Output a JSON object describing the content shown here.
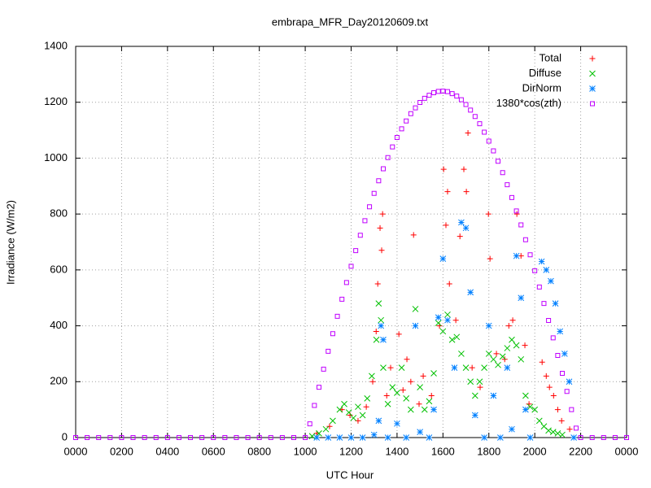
{
  "chart_data": {
    "type": "scatter",
    "title": "embrapa_MFR_Day20120609.txt",
    "xlabel": "UTC Hour",
    "ylabel": "Irradiance (W/m2)",
    "xlim": [
      0,
      24
    ],
    "ylim": [
      0,
      1400
    ],
    "xticks": [
      {
        "value": 0,
        "label": "0000"
      },
      {
        "value": 2,
        "label": "0200"
      },
      {
        "value": 4,
        "label": "0400"
      },
      {
        "value": 6,
        "label": "0600"
      },
      {
        "value": 8,
        "label": "0800"
      },
      {
        "value": 10,
        "label": "1000"
      },
      {
        "value": 12,
        "label": "1200"
      },
      {
        "value": 14,
        "label": "1400"
      },
      {
        "value": 16,
        "label": "1600"
      },
      {
        "value": 18,
        "label": "1800"
      },
      {
        "value": 20,
        "label": "2000"
      },
      {
        "value": 22,
        "label": "2200"
      },
      {
        "value": 24,
        "label": "0000"
      }
    ],
    "yticks": [
      0,
      200,
      400,
      600,
      800,
      1000,
      1200,
      1400
    ],
    "grid": true,
    "legend": "top-right",
    "series": [
      {
        "name": "Total",
        "color": "#ff0000",
        "marker": "plus",
        "x": [
          10.5,
          11.06,
          11.6,
          11.95,
          12.3,
          12.66,
          12.94,
          13.09,
          13.16,
          13.26,
          13.37,
          13.33,
          13.55,
          13.72,
          14.08,
          14.26,
          14.43,
          14.72,
          14.6,
          14.96,
          15.14,
          15.5,
          15.85,
          16.03,
          16.2,
          16.13,
          16.28,
          16.56,
          16.74,
          16.91,
          17.09,
          17.02,
          17.27,
          17.62,
          17.98,
          18.05,
          18.33,
          18.69,
          18.87,
          19.04,
          19.22,
          19.4,
          19.57,
          19.75,
          20.32,
          20.5,
          20.64,
          20.82,
          21.0,
          21.17,
          21.52
        ],
        "values": [
          15,
          40,
          100,
          80,
          60,
          110,
          200,
          380,
          550,
          750,
          800,
          670,
          150,
          250,
          370,
          170,
          280,
          725,
          200,
          120,
          220,
          150,
          400,
          960,
          880,
          760,
          550,
          420,
          720,
          960,
          1090,
          880,
          250,
          180,
          800,
          640,
          300,
          280,
          400,
          420,
          800,
          650,
          330,
          120,
          270,
          220,
          180,
          150,
          100,
          60,
          30
        ]
      },
      {
        "name": "Diffuse",
        "color": "#00c000",
        "marker": "cross",
        "x": [
          10.3,
          10.6,
          10.9,
          11.2,
          11.5,
          11.7,
          11.9,
          12.1,
          12.3,
          12.5,
          12.7,
          12.9,
          13.1,
          13.2,
          13.3,
          13.4,
          13.6,
          13.8,
          14.0,
          14.2,
          14.4,
          14.6,
          14.8,
          15.0,
          15.2,
          15.4,
          15.6,
          15.8,
          16.0,
          16.2,
          16.4,
          16.6,
          16.8,
          17.0,
          17.2,
          17.4,
          17.6,
          17.8,
          18.0,
          18.2,
          18.4,
          18.6,
          18.8,
          19.0,
          19.2,
          19.4,
          19.6,
          19.8,
          20.0,
          20.2,
          20.4,
          20.6,
          20.8,
          21.0,
          21.2
        ],
        "values": [
          5,
          15,
          30,
          60,
          100,
          120,
          90,
          70,
          110,
          80,
          140,
          220,
          350,
          480,
          420,
          250,
          120,
          180,
          160,
          250,
          140,
          100,
          460,
          180,
          100,
          130,
          230,
          410,
          380,
          440,
          350,
          360,
          300,
          250,
          200,
          150,
          200,
          250,
          300,
          280,
          260,
          290,
          320,
          350,
          330,
          280,
          150,
          110,
          100,
          60,
          40,
          25,
          20,
          15,
          10
        ]
      },
      {
        "name": "DirNorm",
        "color": "#0080ff",
        "marker": "star",
        "x": [
          10.5,
          11.0,
          11.5,
          12.0,
          12.5,
          13.0,
          13.2,
          13.3,
          13.4,
          13.6,
          14.0,
          14.4,
          14.8,
          15.0,
          15.4,
          15.6,
          15.8,
          16.0,
          16.2,
          16.5,
          16.8,
          17.0,
          17.2,
          17.4,
          17.8,
          18.0,
          18.2,
          18.5,
          18.8,
          19.0,
          19.2,
          19.4,
          19.6,
          19.8,
          20.3,
          20.5,
          20.7,
          20.9,
          21.1,
          21.3,
          21.5,
          21.7
        ],
        "values": [
          0,
          0,
          0,
          0,
          0,
          10,
          60,
          400,
          350,
          0,
          50,
          0,
          400,
          20,
          0,
          100,
          430,
          640,
          420,
          250,
          770,
          750,
          520,
          80,
          0,
          400,
          150,
          0,
          250,
          30,
          650,
          500,
          100,
          0,
          630,
          600,
          560,
          480,
          380,
          300,
          200,
          0
        ]
      },
      {
        "name": "1380*cos(zth)",
        "color": "#c000ff",
        "marker": "square",
        "x": [
          0,
          0.5,
          1,
          1.5,
          2,
          2.5,
          3,
          3.5,
          4,
          4.5,
          5,
          5.5,
          6,
          6.5,
          7,
          7.5,
          8,
          8.5,
          9,
          9.5,
          10.0,
          10.2,
          10.4,
          10.6,
          10.8,
          11.0,
          11.2,
          11.4,
          11.6,
          11.8,
          12.0,
          12.2,
          12.4,
          12.6,
          12.8,
          13.0,
          13.2,
          13.4,
          13.6,
          13.8,
          14.0,
          14.2,
          14.4,
          14.6,
          14.8,
          15.0,
          15.2,
          15.4,
          15.6,
          15.8,
          16.0,
          16.2,
          16.4,
          16.6,
          16.8,
          17.0,
          17.2,
          17.4,
          17.6,
          17.8,
          18.0,
          18.2,
          18.4,
          18.6,
          18.8,
          19.0,
          19.2,
          19.4,
          19.6,
          19.8,
          20.0,
          20.2,
          20.4,
          20.6,
          20.8,
          21.0,
          21.2,
          21.4,
          21.6,
          21.8,
          22.0,
          22.5,
          23,
          23.5,
          24
        ],
        "values": [
          0,
          0,
          0,
          0,
          0,
          0,
          0,
          0,
          0,
          0,
          0,
          0,
          0,
          0,
          0,
          0,
          0,
          0,
          0,
          0,
          0,
          49,
          115,
          180,
          245,
          309,
          372,
          434,
          495,
          555,
          613,
          669,
          724,
          776,
          826,
          874,
          919,
          962,
          1002,
          1040,
          1074,
          1105,
          1133,
          1159,
          1180,
          1199,
          1214,
          1225,
          1234,
          1239,
          1240,
          1238,
          1231,
          1222,
          1209,
          1192,
          1172,
          1149,
          1123,
          1093,
          1061,
          1026,
          989,
          948,
          905,
          859,
          811,
          761,
          708,
          654,
          597,
          539,
          480,
          419,
          357,
          294,
          230,
          165,
          100,
          34,
          0,
          0,
          0,
          0,
          0
        ]
      }
    ]
  }
}
